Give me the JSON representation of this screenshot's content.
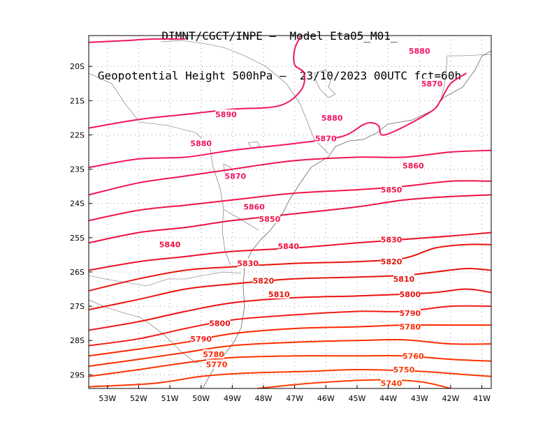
{
  "header": {
    "line1": "DIMNT/CGCT/INPE –  Model Eta05_M01_",
    "line2": "Geopotential Height 500hPa –  23/10/2023 00UTC fct=60h"
  },
  "axes": {
    "lat_labels": [
      "20S",
      "21S",
      "22S",
      "23S",
      "24S",
      "25S",
      "26S",
      "27S",
      "28S",
      "29S"
    ],
    "lon_labels": [
      "53W",
      "52W",
      "51W",
      "50W",
      "49W",
      "48W",
      "47W",
      "46W",
      "45W",
      "44W",
      "43W",
      "42W",
      "41W"
    ],
    "lat_range": [
      -29.4,
      -19.1
    ],
    "lon_range": [
      -53.6,
      -40.7
    ],
    "grid": true
  },
  "chart_data": {
    "type": "contour",
    "field": "Geopotential Height 500hPa",
    "units": "m",
    "contour_interval": 10,
    "colors": {
      "5740": "#FF3C00",
      "5750": "#FF3600",
      "5760": "#FF3200",
      "5770": "#FF2C00",
      "5780": "#FF2600",
      "5790": "#F41C14",
      "5800": "#EE1010",
      "5810": "#E8140A",
      "5820": "#E8140A",
      "5830": "#EE1028",
      "5840": "#EE1040",
      "5850": "#F01448",
      "5860": "#F21452",
      "5870": "#F51462",
      "5880": "#F01466",
      "5890": "#F01466"
    },
    "contours": [
      {
        "value": 5740,
        "label": "5740",
        "points": [
          [
            -48.2,
            -29.4
          ],
          [
            -46.5,
            -29.25
          ],
          [
            -44.5,
            -29.15
          ],
          [
            -43.0,
            -29.2
          ],
          [
            -42.0,
            -29.4
          ]
        ],
        "label_at": [
          -43.9,
          -29.25
        ]
      },
      {
        "value": 5750,
        "label": "5750",
        "points": [
          [
            -53.6,
            -29.35
          ],
          [
            -51.5,
            -29.25
          ],
          [
            -50.0,
            -29.05
          ],
          [
            -48.5,
            -28.95
          ],
          [
            -46.5,
            -28.9
          ],
          [
            -45.0,
            -28.85
          ],
          [
            -43.0,
            -28.9
          ],
          [
            -41.5,
            -29.0
          ],
          [
            -40.7,
            -29.05
          ]
        ],
        "label_at": [
          -43.5,
          -28.85
        ]
      },
      {
        "value": 5760,
        "label": "5760",
        "points": [
          [
            -53.6,
            -29.05
          ],
          [
            -52.0,
            -28.85
          ],
          [
            -50.5,
            -28.65
          ],
          [
            -49.0,
            -28.5
          ],
          [
            -47.0,
            -28.45
          ],
          [
            -45.0,
            -28.45
          ],
          [
            -43.5,
            -28.45
          ],
          [
            -42.0,
            -28.55
          ],
          [
            -40.7,
            -28.6
          ]
        ],
        "label_at": [
          -43.2,
          -28.45
        ]
      },
      {
        "value": 5770,
        "label": "5770",
        "points": [
          [
            -53.6,
            -28.75
          ],
          [
            -52.0,
            -28.55
          ],
          [
            -50.5,
            -28.35
          ],
          [
            -49.0,
            -28.15
          ],
          [
            -47.0,
            -28.05
          ],
          [
            -45.0,
            -28.0
          ],
          [
            -43.5,
            -27.98
          ],
          [
            -42.0,
            -28.1
          ],
          [
            -40.7,
            -28.1
          ]
        ],
        "label_at": [
          -49.5,
          -28.7
        ]
      },
      {
        "value": 5780,
        "label": "5780",
        "points": [
          [
            -53.6,
            -28.45
          ],
          [
            -52.0,
            -28.25
          ],
          [
            -50.5,
            -28.05
          ],
          [
            -49.0,
            -27.8
          ],
          [
            -47.0,
            -27.65
          ],
          [
            -45.0,
            -27.6
          ],
          [
            -43.5,
            -27.55
          ],
          [
            -42.0,
            -27.55
          ],
          [
            -40.7,
            -27.55
          ]
        ],
        "label_at": [
          -43.3,
          -27.6
        ]
      },
      {
        "value": 5790,
        "label": "5790",
        "points": [
          [
            -53.6,
            -28.15
          ],
          [
            -52.0,
            -27.95
          ],
          [
            -50.5,
            -27.65
          ],
          [
            -49.0,
            -27.4
          ],
          [
            -47.0,
            -27.25
          ],
          [
            -45.0,
            -27.15
          ],
          [
            -43.5,
            -27.15
          ],
          [
            -42.0,
            -27.0
          ],
          [
            -40.7,
            -27.0
          ]
        ],
        "label_at": [
          -43.3,
          -27.2
        ]
      },
      {
        "value": 5800,
        "label": "5800",
        "points": [
          [
            -53.6,
            -27.7
          ],
          [
            -52.0,
            -27.45
          ],
          [
            -50.5,
            -27.15
          ],
          [
            -49.0,
            -26.9
          ],
          [
            -47.0,
            -26.75
          ],
          [
            -45.0,
            -26.7
          ],
          [
            -43.5,
            -26.65
          ],
          [
            -42.5,
            -26.6
          ],
          [
            -41.5,
            -26.5
          ],
          [
            -40.7,
            -26.6
          ]
        ],
        "label_at": [
          -43.3,
          -26.65
        ]
      },
      {
        "value": 5810,
        "label": "5810",
        "points": [
          [
            -53.6,
            -27.1
          ],
          [
            -52.0,
            -26.8
          ],
          [
            -50.5,
            -26.5
          ],
          [
            -49.0,
            -26.35
          ],
          [
            -47.0,
            -26.2
          ],
          [
            -45.0,
            -26.15
          ],
          [
            -43.5,
            -26.1
          ],
          [
            -42.5,
            -26.0
          ],
          [
            -41.5,
            -25.9
          ],
          [
            -40.7,
            -25.95
          ]
        ],
        "label_at": [
          -43.5,
          -26.2
        ]
      },
      {
        "value": 5820,
        "label": "5820",
        "points": [
          [
            -53.6,
            -26.55
          ],
          [
            -52.0,
            -26.2
          ],
          [
            -50.5,
            -25.95
          ],
          [
            -49.0,
            -25.85
          ],
          [
            -47.0,
            -25.75
          ],
          [
            -45.0,
            -25.7
          ],
          [
            -43.5,
            -25.6
          ],
          [
            -42.5,
            -25.3
          ],
          [
            -41.5,
            -25.2
          ],
          [
            -40.7,
            -25.2
          ]
        ],
        "label_at": [
          -43.9,
          -25.7
        ]
      },
      {
        "value": 5830,
        "label": "5830",
        "points": [
          [
            -53.6,
            -25.95
          ],
          [
            -52.0,
            -25.7
          ],
          [
            -50.5,
            -25.55
          ],
          [
            -49.0,
            -25.4
          ],
          [
            -47.0,
            -25.3
          ],
          [
            -45.0,
            -25.15
          ],
          [
            -43.5,
            -25.05
          ],
          [
            -42.0,
            -24.95
          ],
          [
            -40.7,
            -24.85
          ]
        ],
        "label_at": [
          -43.9,
          -25.05
        ]
      },
      {
        "value": 5840,
        "label": "5840",
        "points": [
          [
            -53.6,
            -25.15
          ],
          [
            -52.0,
            -24.85
          ],
          [
            -50.5,
            -24.7
          ],
          [
            -49.0,
            -24.5
          ],
          [
            -47.0,
            -24.3
          ],
          [
            -45.0,
            -24.1
          ],
          [
            -43.5,
            -23.9
          ],
          [
            -42.0,
            -23.8
          ],
          [
            -40.7,
            -23.75
          ]
        ],
        "label_at": [
          -51.0,
          -25.2
        ]
      },
      {
        "value": 5850,
        "label": "5850",
        "points": [
          [
            -53.6,
            -24.5
          ],
          [
            -52.0,
            -24.2
          ],
          [
            -50.5,
            -24.05
          ],
          [
            -49.0,
            -23.9
          ],
          [
            -47.0,
            -23.7
          ],
          [
            -45.0,
            -23.6
          ],
          [
            -43.5,
            -23.5
          ],
          [
            -42.0,
            -23.35
          ],
          [
            -40.7,
            -23.35
          ]
        ],
        "label_at": [
          -43.9,
          -23.6
        ]
      },
      {
        "value": 5860,
        "label": "5860",
        "points": [
          [
            -53.6,
            -23.75
          ],
          [
            -52.0,
            -23.4
          ],
          [
            -50.5,
            -23.2
          ],
          [
            -49.0,
            -23.0
          ],
          [
            -47.0,
            -22.75
          ],
          [
            -45.0,
            -22.65
          ],
          [
            -43.5,
            -22.65
          ],
          [
            -42.0,
            -22.5
          ],
          [
            -40.7,
            -22.45
          ]
        ],
        "label_at": [
          -48.3,
          -24.1
        ]
      },
      {
        "value": 5870,
        "label": "5870",
        "points": [
          [
            -53.6,
            -22.95
          ],
          [
            -52.0,
            -22.7
          ],
          [
            -50.5,
            -22.65
          ],
          [
            -49.0,
            -22.45
          ],
          [
            -47.0,
            -22.25
          ],
          [
            -45.5,
            -22.05
          ],
          [
            -44.8,
            -21.7
          ],
          [
            -44.5,
            -21.65
          ],
          [
            -44.3,
            -21.75
          ],
          [
            -44.2,
            -22.0
          ],
          [
            -43.7,
            -21.85
          ],
          [
            -42.6,
            -21.3
          ],
          [
            -42.3,
            -20.95
          ],
          [
            -42.0,
            -20.5
          ],
          [
            -41.5,
            -20.2
          ]
        ],
        "label_at": [
          -48.9,
          -23.2
        ]
      },
      {
        "value": 5880,
        "label": "5880",
        "points": [
          [
            -53.6,
            -21.8
          ],
          [
            -52.0,
            -21.55
          ],
          [
            -50.5,
            -21.4
          ],
          [
            -49.0,
            -21.25
          ],
          [
            -47.5,
            -21.15
          ],
          [
            -46.8,
            -20.7
          ],
          [
            -46.7,
            -20.2
          ],
          [
            -47.0,
            -19.95
          ],
          [
            -47.0,
            -19.5
          ],
          [
            -46.8,
            -19.1
          ]
        ],
        "label_at": [
          -45.8,
          -21.5
        ]
      },
      {
        "value": 5890,
        "label": "5890",
        "points": [
          [
            -53.6,
            -19.3
          ],
          [
            -52.5,
            -19.25
          ],
          [
            -51.5,
            -19.2
          ],
          [
            -50.5,
            -19.2
          ]
        ],
        "label_at": [
          -49.2,
          -21.4
        ]
      }
    ],
    "extra_labels": [
      {
        "text": "5880",
        "at": [
          -50.0,
          -22.25
        ]
      },
      {
        "text": "5880",
        "at": [
          -43.0,
          -19.55
        ]
      },
      {
        "text": "5870",
        "at": [
          -42.6,
          -20.5
        ]
      },
      {
        "text": "5870",
        "at": [
          -46.0,
          -22.1
        ]
      },
      {
        "text": "5860",
        "at": [
          -43.2,
          -22.9
        ]
      },
      {
        "text": "5850",
        "at": [
          -47.8,
          -24.45
        ]
      },
      {
        "text": "5840",
        "at": [
          -47.2,
          -25.25
        ]
      },
      {
        "text": "5830",
        "at": [
          -48.5,
          -25.75
        ]
      },
      {
        "text": "5820",
        "at": [
          -48.0,
          -26.25
        ]
      },
      {
        "text": "5810",
        "at": [
          -47.5,
          -26.65
        ]
      },
      {
        "text": "5800",
        "at": [
          -49.4,
          -27.5
        ]
      },
      {
        "text": "5790",
        "at": [
          -50.0,
          -27.95
        ]
      },
      {
        "text": "5780",
        "at": [
          -49.6,
          -28.4
        ]
      }
    ]
  }
}
